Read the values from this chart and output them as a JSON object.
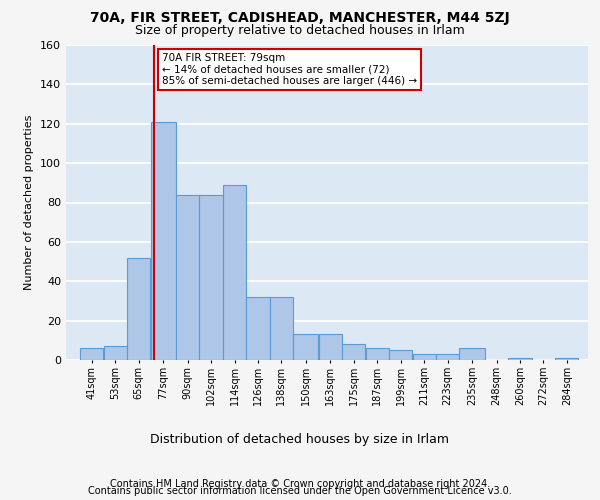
{
  "title1": "70A, FIR STREET, CADISHEAD, MANCHESTER, M44 5ZJ",
  "title2": "Size of property relative to detached houses in Irlam",
  "xlabel": "Distribution of detached houses by size in Irlam",
  "ylabel": "Number of detached properties",
  "footer1": "Contains HM Land Registry data © Crown copyright and database right 2024.",
  "footer2": "Contains public sector information licensed under the Open Government Licence v3.0.",
  "annotation_line1": "70A FIR STREET: 79sqm",
  "annotation_line2": "← 14% of detached houses are smaller (72)",
  "annotation_line3": "85% of semi-detached houses are larger (446) →",
  "property_size": 79,
  "bar_labels": [
    "41sqm",
    "53sqm",
    "65sqm",
    "77sqm",
    "90sqm",
    "102sqm",
    "114sqm",
    "126sqm",
    "138sqm",
    "150sqm",
    "163sqm",
    "175sqm",
    "187sqm",
    "199sqm",
    "211sqm",
    "223sqm",
    "235sqm",
    "248sqm",
    "260sqm",
    "272sqm",
    "284sqm"
  ],
  "bar_values": [
    6,
    7,
    52,
    121,
    84,
    84,
    89,
    32,
    32,
    13,
    13,
    8,
    6,
    5,
    3,
    3,
    6,
    0,
    1,
    0,
    1
  ],
  "bar_edges": [
    41,
    53,
    65,
    77,
    90,
    102,
    114,
    126,
    138,
    150,
    163,
    175,
    187,
    199,
    211,
    223,
    235,
    248,
    260,
    272,
    284
  ],
  "bar_color": "#aec6e8",
  "bar_edge_color": "#5b9bd5",
  "bar_linewidth": 0.8,
  "vline_x": 79,
  "vline_color": "#cc0000",
  "annotation_box_color": "#ffffff",
  "annotation_box_edgecolor": "#cc0000",
  "ylim": [
    0,
    160
  ],
  "yticks": [
    0,
    20,
    40,
    60,
    80,
    100,
    120,
    140,
    160
  ],
  "background_color": "#dde8f5",
  "grid_color": "#ffffff",
  "fig_background": "#f5f5f5",
  "title1_fontsize": 10,
  "title2_fontsize": 9,
  "xlabel_fontsize": 9,
  "ylabel_fontsize": 8,
  "tick_fontsize": 7,
  "annotation_fontsize": 7.5,
  "footer_fontsize": 7
}
